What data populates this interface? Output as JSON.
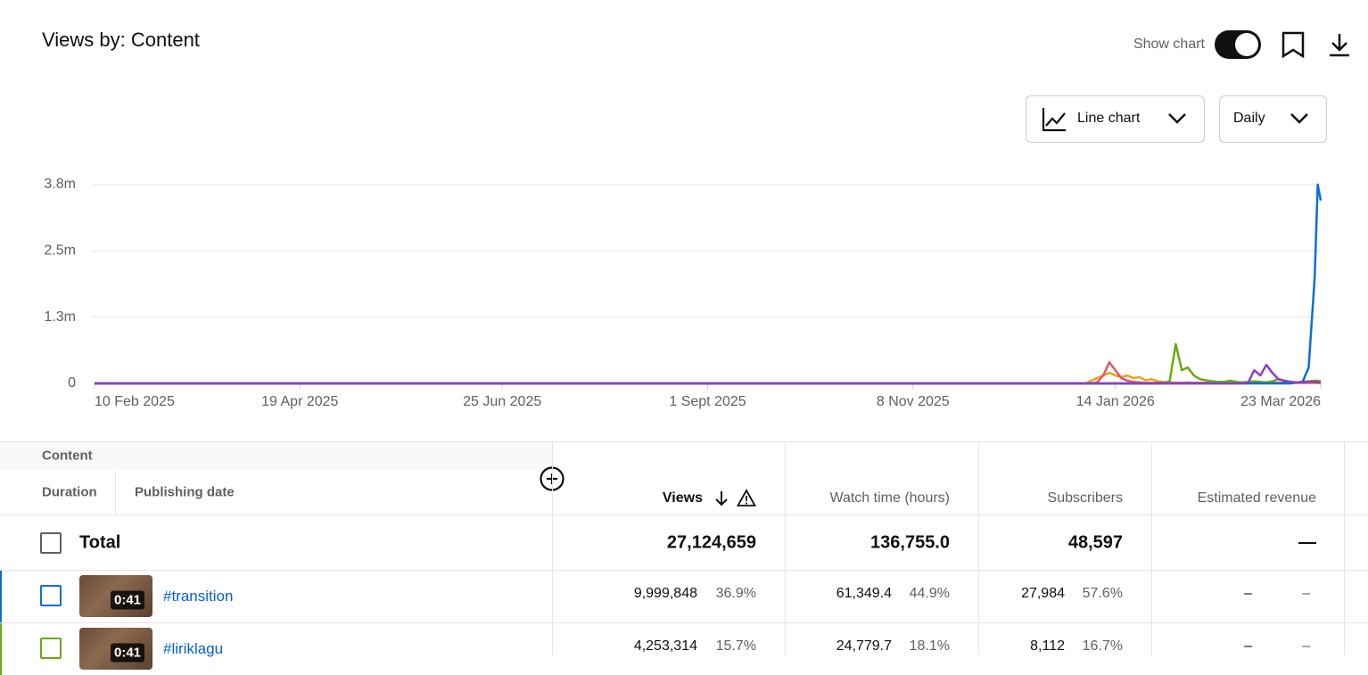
{
  "header": {
    "title": "Views by: Content",
    "show_chart_label": "Show chart"
  },
  "controls": {
    "chart_type": "Line chart",
    "interval": "Daily"
  },
  "chart_data": {
    "type": "line",
    "x": [
      "2025-02-10",
      "2026-01-04",
      "2026-01-06",
      "2026-01-08",
      "2026-01-10",
      "2026-01-12",
      "2026-01-14",
      "2026-01-16",
      "2026-01-18",
      "2026-01-20",
      "2026-01-22",
      "2026-01-24",
      "2026-01-26",
      "2026-01-28",
      "2026-01-30",
      "2026-02-01",
      "2026-02-03",
      "2026-02-05",
      "2026-02-07",
      "2026-02-09",
      "2026-02-11",
      "2026-02-13",
      "2026-02-15",
      "2026-02-17",
      "2026-02-19",
      "2026-02-21",
      "2026-02-23",
      "2026-02-25",
      "2026-02-27",
      "2026-03-01",
      "2026-03-03",
      "2026-03-05",
      "2026-03-07",
      "2026-03-09",
      "2026-03-11",
      "2026-03-13",
      "2026-03-15",
      "2026-03-17",
      "2026-03-19",
      "2026-03-21",
      "2026-03-22",
      "2026-03-23"
    ],
    "series": [
      {
        "color": "#e8a317",
        "values": [
          0,
          0,
          50000,
          100000,
          150000,
          200000,
          150000,
          120000,
          150000,
          100000,
          120000,
          60000,
          80000,
          40000,
          30000,
          20000,
          10000,
          10000,
          20000,
          10000,
          10000,
          10000,
          20000,
          10000,
          10000,
          10000,
          10000,
          20000,
          10000,
          10000,
          10000,
          10000,
          20000,
          10000,
          10000,
          10000,
          10000,
          10000,
          20000,
          10000,
          10000,
          10000
        ]
      },
      {
        "color": "#e0566e",
        "values": [
          0,
          0,
          0,
          20000,
          150000,
          400000,
          250000,
          100000,
          50000,
          30000,
          20000,
          10000,
          10000,
          10000,
          10000,
          10000,
          10000,
          10000,
          10000,
          10000,
          10000,
          10000,
          10000,
          10000,
          10000,
          10000,
          10000,
          10000,
          10000,
          10000,
          10000,
          10000,
          10000,
          10000,
          10000,
          10000,
          10000,
          10000,
          10000,
          10000,
          10000,
          10000
        ]
      },
      {
        "color": "#6aaa0c",
        "values": [
          0,
          0,
          0,
          0,
          0,
          0,
          0,
          0,
          0,
          0,
          0,
          0,
          0,
          0,
          0,
          50000,
          740000,
          250000,
          300000,
          150000,
          80000,
          60000,
          40000,
          30000,
          30000,
          50000,
          30000,
          20000,
          30000,
          40000,
          30000,
          20000,
          40000,
          80000,
          50000,
          30000,
          20000,
          30000,
          40000,
          50000,
          50000,
          40000
        ]
      },
      {
        "color": "#0b6fd6",
        "values": [
          0,
          0,
          0,
          0,
          0,
          0,
          0,
          0,
          0,
          0,
          0,
          0,
          0,
          0,
          0,
          0,
          0,
          0,
          0,
          0,
          0,
          0,
          0,
          0,
          0,
          0,
          0,
          0,
          0,
          0,
          0,
          0,
          0,
          0,
          0,
          0,
          20000,
          30000,
          300000,
          2000000,
          3750000,
          3450000
        ]
      },
      {
        "color": "#8e3ec4",
        "values": [
          0,
          0,
          0,
          0,
          0,
          0,
          0,
          0,
          0,
          0,
          0,
          0,
          0,
          0,
          0,
          0,
          0,
          0,
          0,
          0,
          0,
          0,
          0,
          0,
          0,
          0,
          0,
          0,
          20000,
          250000,
          150000,
          350000,
          200000,
          80000,
          50000,
          30000,
          20000,
          20000,
          30000,
          30000,
          20000,
          20000
        ]
      }
    ],
    "xlim": [
      "2025-02-10",
      "2026-03-23"
    ],
    "xticks": [
      {
        "value": "2025-02-10",
        "label": "10 Feb 2025"
      },
      {
        "value": "2025-04-19",
        "label": "19 Apr 2025"
      },
      {
        "value": "2025-06-25",
        "label": "25 Jun 2025"
      },
      {
        "value": "2025-09-01",
        "label": "1 Sept 2025"
      },
      {
        "value": "2025-11-08",
        "label": "8 Nov 2025"
      },
      {
        "value": "2026-01-14",
        "label": "14 Jan 2026"
      },
      {
        "value": "2026-03-23",
        "label": "23 Mar 2026"
      }
    ],
    "ylim": [
      0,
      3750000
    ],
    "yticks": [
      0,
      {
        "value": 1250000,
        "label": "1.3m"
      },
      {
        "value": 2500000,
        "label": "2.5m"
      },
      {
        "value": 3750000,
        "label": "3.8m"
      }
    ],
    "grid": true
  },
  "table": {
    "content_header": "Content",
    "sub_headers": [
      "Duration",
      "Publishing date"
    ],
    "columns": [
      "Views",
      "Watch time (hours)",
      "Subscribers",
      "Estimated revenue"
    ],
    "total": {
      "label": "Total",
      "cells": [
        "27,124,659",
        "136,755.0",
        "48,597",
        "—"
      ]
    },
    "rows": [
      {
        "duration": "0:41",
        "title": "#transition",
        "cells": [
          [
            "9,999,848",
            "36.9%"
          ],
          [
            "61,349.4",
            "44.9%"
          ],
          [
            "27,984",
            "57.6%"
          ],
          [
            "–",
            "–"
          ]
        ]
      },
      {
        "duration": "0:41",
        "title": "#liriklagu",
        "cells": [
          [
            "4,253,314",
            "15.7%"
          ],
          [
            "24,779.7",
            "18.1%"
          ],
          [
            "8,112",
            "16.7%"
          ],
          [
            "–",
            "–"
          ]
        ]
      }
    ]
  }
}
